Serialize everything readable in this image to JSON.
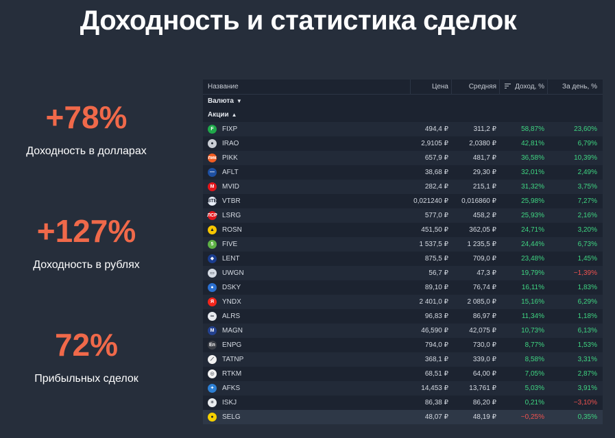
{
  "title": "Доходность и статистика сделок",
  "stats": [
    {
      "value": "+78%",
      "caption": "Доходность в долларах"
    },
    {
      "value": "+127%",
      "caption": "Доходность в рублях"
    },
    {
      "value": "72%",
      "caption": "Прибыльных сделок"
    }
  ],
  "table": {
    "headers": {
      "name": "Название",
      "price": "Цена",
      "avg": "Средняя",
      "yield": "Доход, %",
      "day": "За день, %"
    },
    "group_currency": "Валюта",
    "group_stocks": "Акции",
    "colors": {
      "positive": "#3fd682",
      "negative": "#f0524f",
      "accent": "#f0694a"
    },
    "rows": [
      {
        "ticker": "FIXP",
        "price": "494,4 ₽",
        "avg": "311,2 ₽",
        "yield": "58,87%",
        "day": "23,60%",
        "icon": "fixp-logo",
        "logo_color": "#1fa84a",
        "logo_glyph": "F",
        "yield_sign": "pos",
        "day_sign": "pos"
      },
      {
        "ticker": "IRAO",
        "price": "2,9105 ₽",
        "avg": "2,0380 ₽",
        "yield": "42,81%",
        "day": "6,79%",
        "icon": "irao-logo",
        "logo_color": "#c9cdd4",
        "logo_glyph": "●",
        "yield_sign": "pos",
        "day_sign": "pos"
      },
      {
        "ticker": "PIKK",
        "price": "657,9 ₽",
        "avg": "481,7 ₽",
        "yield": "36,58%",
        "day": "10,39%",
        "icon": "pikk-logo",
        "logo_color": "#f25d22",
        "logo_glyph": "пик",
        "yield_sign": "pos",
        "day_sign": "pos"
      },
      {
        "ticker": "AFLT",
        "price": "38,68 ₽",
        "avg": "29,30 ₽",
        "yield": "32,01%",
        "day": "2,49%",
        "icon": "aflt-logo",
        "logo_color": "#1d4fa1",
        "logo_glyph": "—",
        "yield_sign": "pos",
        "day_sign": "pos"
      },
      {
        "ticker": "MVID",
        "price": "282,4 ₽",
        "avg": "215,1 ₽",
        "yield": "31,32%",
        "day": "3,75%",
        "icon": "mvid-logo",
        "logo_color": "#e3161c",
        "logo_glyph": "М",
        "yield_sign": "pos",
        "day_sign": "pos"
      },
      {
        "ticker": "VTBR",
        "price": "0,021240 ₽",
        "avg": "0,016860 ₽",
        "yield": "25,98%",
        "day": "7,27%",
        "icon": "vtbr-logo",
        "logo_color": "#e8eef8",
        "logo_glyph": "ВТБ",
        "yield_sign": "pos",
        "day_sign": "pos"
      },
      {
        "ticker": "LSRG",
        "price": "577,0 ₽",
        "avg": "458,2 ₽",
        "yield": "25,93%",
        "day": "2,16%",
        "icon": "lsrg-logo",
        "logo_color": "#e3161c",
        "logo_glyph": "ЛСР",
        "yield_sign": "pos",
        "day_sign": "pos"
      },
      {
        "ticker": "ROSN",
        "price": "451,50 ₽",
        "avg": "362,05 ₽",
        "yield": "24,71%",
        "day": "3,20%",
        "icon": "rosn-logo",
        "logo_color": "#f7c600",
        "logo_glyph": "▲",
        "yield_sign": "pos",
        "day_sign": "pos"
      },
      {
        "ticker": "FIVE",
        "price": "1 537,5 ₽",
        "avg": "1 235,5 ₽",
        "yield": "24,44%",
        "day": "6,73%",
        "icon": "five-logo",
        "logo_color": "#5eb146",
        "logo_glyph": "5",
        "yield_sign": "pos",
        "day_sign": "pos"
      },
      {
        "ticker": "LENT",
        "price": "875,5 ₽",
        "avg": "709,0 ₽",
        "yield": "23,48%",
        "day": "1,45%",
        "icon": "lent-logo",
        "logo_color": "#1a3d8f",
        "logo_glyph": "◆",
        "yield_sign": "pos",
        "day_sign": "pos"
      },
      {
        "ticker": "UWGN",
        "price": "56,7 ₽",
        "avg": "47,3 ₽",
        "yield": "19,79%",
        "day": "−1,39%",
        "icon": "uwgn-logo",
        "logo_color": "#d5dbe4",
        "logo_glyph": "▭",
        "yield_sign": "pos",
        "day_sign": "neg"
      },
      {
        "ticker": "DSKY",
        "price": "89,10 ₽",
        "avg": "76,74 ₽",
        "yield": "16,11%",
        "day": "1,83%",
        "icon": "dsky-logo",
        "logo_color": "#2b6fcf",
        "logo_glyph": "●",
        "yield_sign": "pos",
        "day_sign": "pos"
      },
      {
        "ticker": "YNDX",
        "price": "2 401,0 ₽",
        "avg": "2 085,0 ₽",
        "yield": "15,16%",
        "day": "6,29%",
        "icon": "yndx-logo",
        "logo_color": "#f3251b",
        "logo_glyph": "Я",
        "yield_sign": "pos",
        "day_sign": "pos"
      },
      {
        "ticker": "ALRS",
        "price": "96,83 ₽",
        "avg": "86,97 ₽",
        "yield": "11,34%",
        "day": "1,18%",
        "icon": "alrs-logo",
        "logo_color": "#e6e9ee",
        "logo_glyph": "∞",
        "yield_sign": "pos",
        "day_sign": "pos"
      },
      {
        "ticker": "MAGN",
        "price": "46,590 ₽",
        "avg": "42,075 ₽",
        "yield": "10,73%",
        "day": "6,13%",
        "icon": "magn-logo",
        "logo_color": "#23418f",
        "logo_glyph": "М",
        "yield_sign": "pos",
        "day_sign": "pos"
      },
      {
        "ticker": "ENPG",
        "price": "794,0 ₽",
        "avg": "730,0 ₽",
        "yield": "8,77%",
        "day": "1,53%",
        "icon": "enpg-logo",
        "logo_color": "#3b3f47",
        "logo_glyph": "En",
        "yield_sign": "pos",
        "day_sign": "pos"
      },
      {
        "ticker": "TATNP",
        "price": "368,1 ₽",
        "avg": "339,0 ₽",
        "yield": "8,58%",
        "day": "3,31%",
        "icon": "tatnp-logo",
        "logo_color": "#f1f1f1",
        "logo_glyph": "⟋",
        "yield_sign": "pos",
        "day_sign": "pos"
      },
      {
        "ticker": "RTKM",
        "price": "68,51 ₽",
        "avg": "64,00 ₽",
        "yield": "7,05%",
        "day": "2,87%",
        "icon": "rtkm-logo",
        "logo_color": "#f2f2f2",
        "logo_glyph": "◎",
        "yield_sign": "pos",
        "day_sign": "pos"
      },
      {
        "ticker": "AFKS",
        "price": "14,453 ₽",
        "avg": "13,761 ₽",
        "yield": "5,03%",
        "day": "3,91%",
        "icon": "afks-logo",
        "logo_color": "#2d7fd3",
        "logo_glyph": "✦",
        "yield_sign": "pos",
        "day_sign": "pos"
      },
      {
        "ticker": "ISKJ",
        "price": "86,38 ₽",
        "avg": "86,20 ₽",
        "yield": "0,21%",
        "day": "−3,10%",
        "icon": "iskj-logo",
        "logo_color": "#e9ecef",
        "logo_glyph": "✳",
        "yield_sign": "pos",
        "day_sign": "neg"
      },
      {
        "ticker": "SELG",
        "price": "48,07 ₽",
        "avg": "48,19 ₽",
        "yield": "−0,25%",
        "day": "0,35%",
        "icon": "selg-logo",
        "logo_color": "#f5d000",
        "logo_glyph": "●",
        "yield_sign": "neg",
        "day_sign": "pos"
      }
    ]
  }
}
